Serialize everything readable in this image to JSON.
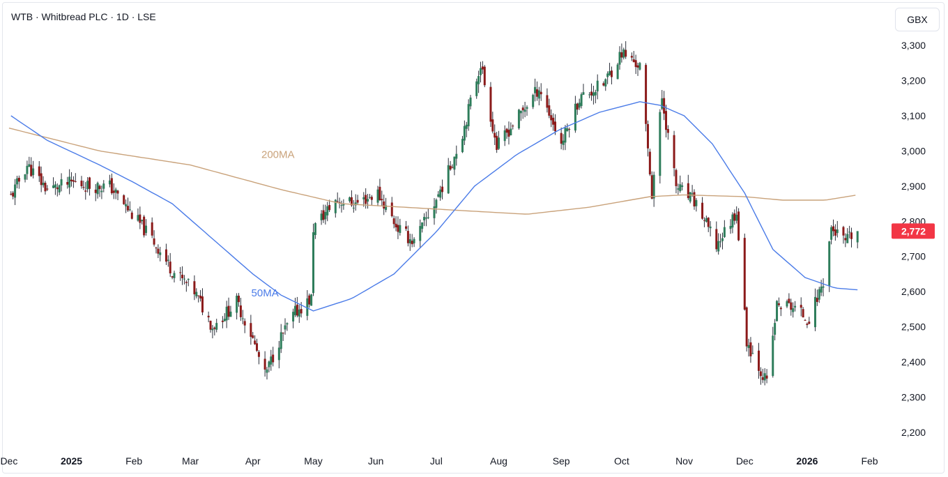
{
  "header": {
    "title": "WTB · Whitbread PLC · 1D · LSE"
  },
  "toolbar": {
    "currency_label": "GBX"
  },
  "colors": {
    "up": "#089981",
    "down": "#f23645",
    "candle_up_body": "#2e7d5b",
    "candle_down_body": "#8b1a1a",
    "ma50": "#4a7be8",
    "ma200": "#c9a27a",
    "price_badge": "#f23645"
  },
  "chart_data": {
    "type": "candlestick",
    "title": "WTB · Whitbread PLC · 1D · LSE",
    "currency": "GBX",
    "ylim": [
      2160,
      3340
    ],
    "y_ticks": [
      "2,200",
      "2,300",
      "2,400",
      "2,500",
      "2,600",
      "2,700",
      "2,800",
      "2,900",
      "3,000",
      "3,100",
      "3,200",
      "3,300"
    ],
    "x_labels": [
      "Dec",
      "2025",
      "Feb",
      "Mar",
      "Apr",
      "May",
      "Jun",
      "Jul",
      "Aug",
      "Sep",
      "Oct",
      "Nov",
      "Dec",
      "2026",
      "Feb"
    ],
    "last_price": {
      "label": "2,772",
      "value": 2772
    },
    "annotations": [
      {
        "text": "200MA",
        "series": "200MA"
      },
      {
        "text": "50MA",
        "series": "50MA"
      }
    ],
    "close_anchors": [
      [
        "2024-12-02",
        2870
      ],
      [
        "2024-12-10",
        2960
      ],
      [
        "2024-12-20",
        2890
      ],
      [
        "2025-01-02",
        2910
      ],
      [
        "2025-01-10",
        2900
      ],
      [
        "2025-01-20",
        2900
      ],
      [
        "2025-01-31",
        2820
      ],
      [
        "2025-02-10",
        2750
      ],
      [
        "2025-02-20",
        2660
      ],
      [
        "2025-03-03",
        2600
      ],
      [
        "2025-03-12",
        2500
      ],
      [
        "2025-03-24",
        2570
      ],
      [
        "2025-03-31",
        2480
      ],
      [
        "2025-04-07",
        2360
      ],
      [
        "2025-04-14",
        2460
      ],
      [
        "2025-04-22",
        2540
      ],
      [
        "2025-04-30",
        2580
      ],
      [
        "2025-05-01",
        2780
      ],
      [
        "2025-05-12",
        2860
      ],
      [
        "2025-05-22",
        2850
      ],
      [
        "2025-06-02",
        2880
      ],
      [
        "2025-06-12",
        2780
      ],
      [
        "2025-06-20",
        2740
      ],
      [
        "2025-06-30",
        2850
      ],
      [
        "2025-07-07",
        2940
      ],
      [
        "2025-07-14",
        3050
      ],
      [
        "2025-07-23",
        3250
      ],
      [
        "2025-07-31",
        3010
      ],
      [
        "2025-08-11",
        3100
      ],
      [
        "2025-08-21",
        3180
      ],
      [
        "2025-09-01",
        3020
      ],
      [
        "2025-09-10",
        3150
      ],
      [
        "2025-09-22",
        3190
      ],
      [
        "2025-10-01",
        3280
      ],
      [
        "2025-10-10",
        3240
      ],
      [
        "2025-10-16",
        2880
      ],
      [
        "2025-10-21",
        3150
      ],
      [
        "2025-10-28",
        2900
      ],
      [
        "2025-11-07",
        2850
      ],
      [
        "2025-11-17",
        2730
      ],
      [
        "2025-11-27",
        2830
      ],
      [
        "2025-12-02",
        2460
      ],
      [
        "2025-12-12",
        2340
      ],
      [
        "2025-12-17",
        2560
      ],
      [
        "2025-12-24",
        2560
      ],
      [
        "2026-01-02",
        2520
      ],
      [
        "2026-01-09",
        2630
      ],
      [
        "2026-01-13",
        2780
      ],
      [
        "2026-01-20",
        2740
      ],
      [
        "2026-01-26",
        2772
      ]
    ],
    "ma50": [
      [
        "2024-12-02",
        3100
      ],
      [
        "2024-12-20",
        3030
      ],
      [
        "2025-01-15",
        2960
      ],
      [
        "2025-02-01",
        2910
      ],
      [
        "2025-02-20",
        2850
      ],
      [
        "2025-03-10",
        2760
      ],
      [
        "2025-04-01",
        2650
      ],
      [
        "2025-04-15",
        2590
      ],
      [
        "2025-05-01",
        2545
      ],
      [
        "2025-05-20",
        2580
      ],
      [
        "2025-06-10",
        2650
      ],
      [
        "2025-07-01",
        2770
      ],
      [
        "2025-07-20",
        2900
      ],
      [
        "2025-08-10",
        2990
      ],
      [
        "2025-08-31",
        3060
      ],
      [
        "2025-09-20",
        3110
      ],
      [
        "2025-10-10",
        3140
      ],
      [
        "2025-10-20",
        3130
      ],
      [
        "2025-11-01",
        3100
      ],
      [
        "2025-11-15",
        3020
      ],
      [
        "2025-12-01",
        2880
      ],
      [
        "2025-12-15",
        2720
      ],
      [
        "2025-12-31",
        2640
      ],
      [
        "2026-01-15",
        2610
      ],
      [
        "2026-01-26",
        2605
      ]
    ],
    "ma200": [
      [
        "2024-12-01",
        3065
      ],
      [
        "2025-01-15",
        3000
      ],
      [
        "2025-03-01",
        2960
      ],
      [
        "2025-04-15",
        2890
      ],
      [
        "2025-05-15",
        2850
      ],
      [
        "2025-06-15",
        2840
      ],
      [
        "2025-07-15",
        2830
      ],
      [
        "2025-08-15",
        2820
      ],
      [
        "2025-09-15",
        2840
      ],
      [
        "2025-10-15",
        2870
      ],
      [
        "2025-11-01",
        2875
      ],
      [
        "2025-12-01",
        2870
      ],
      [
        "2025-12-20",
        2860
      ],
      [
        "2026-01-10",
        2860
      ],
      [
        "2026-01-26",
        2875
      ]
    ]
  }
}
